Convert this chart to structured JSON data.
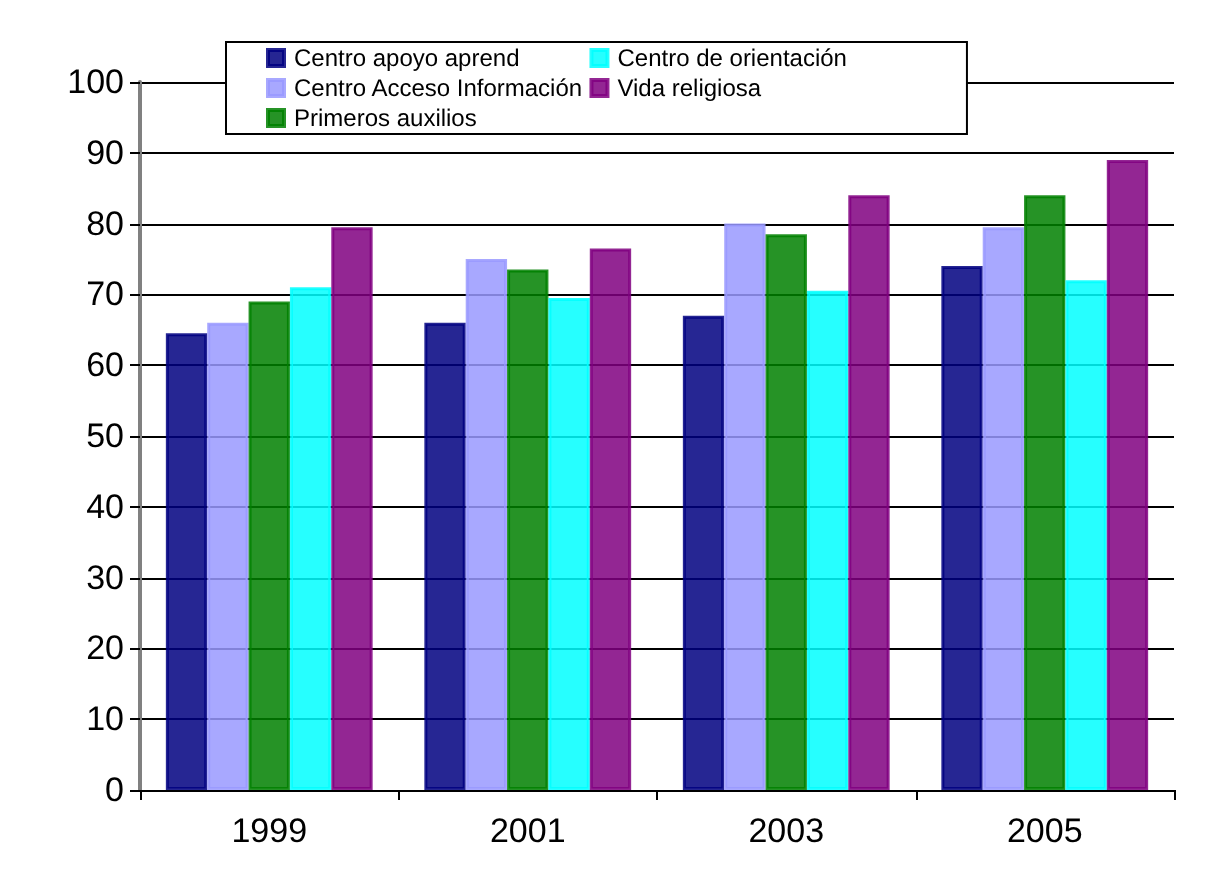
{
  "chart_data": {
    "type": "bar",
    "categories": [
      "1999",
      "2001",
      "2003",
      "2005"
    ],
    "series": [
      {
        "name": "Centro apoyo aprend",
        "color": "#000080",
        "values": [
          64.5,
          66,
          67,
          74
        ]
      },
      {
        "name": "Centro Acceso Información",
        "color": "#9999ff",
        "values": [
          66,
          75,
          80,
          79.5
        ]
      },
      {
        "name": "Primeros auxilios",
        "color": "#008000",
        "values": [
          69,
          73.5,
          78.5,
          84
        ]
      },
      {
        "name": "Centro de orientación",
        "color": "#00ffff",
        "values": [
          71,
          69.5,
          70.5,
          72
        ]
      },
      {
        "name": "Vida religiosa",
        "color": "#800080",
        "values": [
          79.5,
          76.5,
          84,
          89
        ]
      }
    ],
    "ylim": [
      0,
      100
    ],
    "yticks": [
      0,
      10,
      20,
      30,
      40,
      50,
      60,
      70,
      80,
      90,
      100
    ],
    "grid": "y",
    "legend": "top"
  }
}
